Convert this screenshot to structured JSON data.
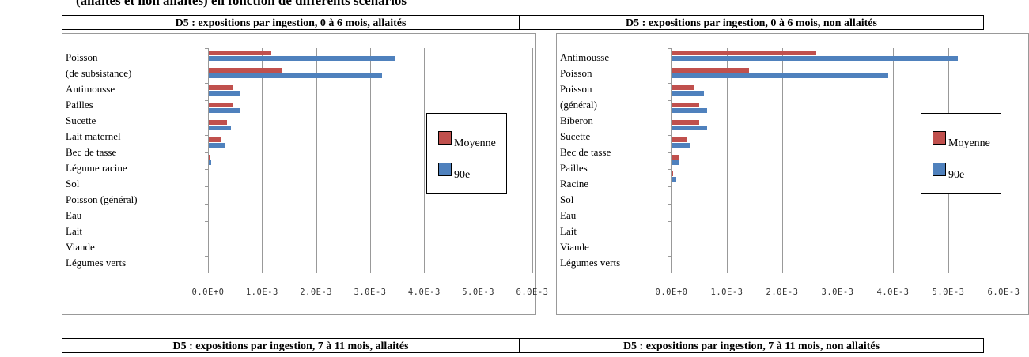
{
  "caption": "(allaités et non allaités) en fonction de différents scénarios",
  "table_headers": [
    "D5 : expositions par ingestion, 0 à 6 mois, allaités",
    "D5 : expositions par ingestion, 0 à 6 mois, non allaités",
    "D5 : expositions par ingestion, 7 à 11 mois, allaités",
    "D5 : expositions par ingestion, 7 à 11 mois, non allaités"
  ],
  "chart_data": [
    {
      "type": "bar",
      "orientation": "horizontal",
      "categories": [
        "Poisson\n(de subsistance)",
        "Antimousse",
        "Pailles",
        "Sucette",
        "Lait maternel",
        "Bec de tasse",
        "Légume racine",
        "Sol",
        "Poisson (général)",
        "Eau",
        "Lait",
        "Viande",
        "Légumes verts"
      ],
      "series": [
        {
          "name": "Moyenne",
          "color": "#c0504d",
          "values": [
            0.00115,
            0.00135,
            0.00045,
            0.00045,
            0.00033,
            0.00024,
            1e-05,
            0,
            0,
            0,
            0,
            0,
            0
          ]
        },
        {
          "name": "90e",
          "color": "#4f81bd",
          "values": [
            0.00345,
            0.0032,
            0.00057,
            0.00057,
            0.00041,
            0.00029,
            4e-05,
            0,
            0,
            0,
            0,
            0,
            0
          ]
        }
      ],
      "xlim": [
        0,
        0.006
      ],
      "xticks": [
        {
          "value": 0,
          "label": "0.0E+0"
        },
        {
          "value": 0.001,
          "label": "1.0E-3"
        },
        {
          "value": 0.002,
          "label": "2.0E-3"
        },
        {
          "value": 0.003,
          "label": "3.0E-3"
        },
        {
          "value": 0.004,
          "label": "4.0E-3"
        },
        {
          "value": 0.005,
          "label": "5.0E-3"
        },
        {
          "value": 0.006,
          "label": "6.0E-3"
        }
      ],
      "grid": true,
      "legend": "right"
    },
    {
      "type": "bar",
      "orientation": "horizontal",
      "categories": [
        "Antimousse",
        "Poisson",
        "Poisson\n(général)",
        "Biberon",
        "Sucette",
        "Bec de tasse",
        "Pailles",
        "Racine",
        "Sol",
        "Eau",
        "Lait",
        "Viande",
        "Légumes verts"
      ],
      "series": [
        {
          "name": "Moyenne",
          "color": "#c0504d",
          "values": [
            0.0026,
            0.00139,
            0.0004,
            0.00049,
            0.00049,
            0.00026,
            0.00011,
            1e-05,
            0,
            0,
            0,
            0,
            0
          ]
        },
        {
          "name": "90e",
          "color": "#4f81bd",
          "values": [
            0.00515,
            0.0039,
            0.00057,
            0.00063,
            0.00063,
            0.00031,
            0.00013,
            7e-05,
            0,
            0,
            0,
            0,
            0
          ]
        }
      ],
      "xlim": [
        0,
        0.006
      ],
      "xticks": [
        {
          "value": 0,
          "label": "0.0E+0"
        },
        {
          "value": 0.001,
          "label": "1.0E-3"
        },
        {
          "value": 0.002,
          "label": "2.0E-3"
        },
        {
          "value": 0.003,
          "label": "3.0E-3"
        },
        {
          "value": 0.004,
          "label": "4.0E-3"
        },
        {
          "value": 0.005,
          "label": "5.0E-3"
        },
        {
          "value": 0.006,
          "label": "6.0E-3"
        }
      ],
      "grid": true,
      "legend": "right"
    }
  ]
}
